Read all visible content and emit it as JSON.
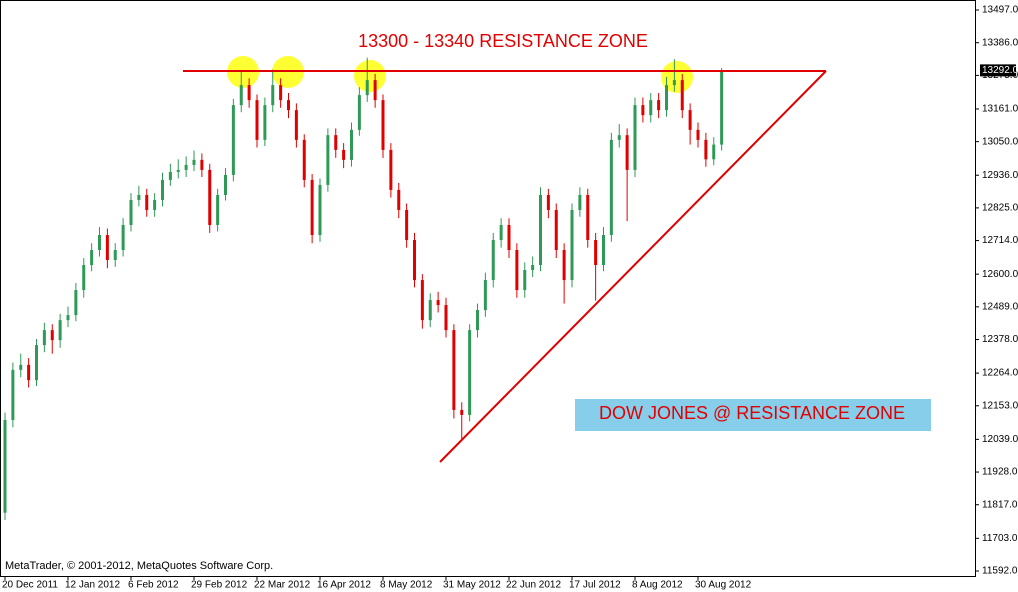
{
  "chart_data": {
    "type": "candlestick",
    "title": "13300 - 13340 RESISTANCE ZONE",
    "annotation": "DOW JONES @ RESISTANCE ZONE",
    "footer": "MetaTrader, © 2001-2012, MetaQuotes Software Corp.",
    "last_price": {
      "value": 13292,
      "label": "13292.0"
    },
    "bull_color": "#2f9a57",
    "bear_color": "#e00000",
    "categories": [
      "20 Dec 2011",
      null,
      null,
      null,
      null,
      null,
      null,
      null,
      "12 Jan 2012",
      null,
      null,
      null,
      null,
      null,
      null,
      null,
      "6 Feb 2012",
      null,
      null,
      null,
      null,
      null,
      null,
      null,
      "29 Feb 2012",
      null,
      null,
      null,
      null,
      null,
      null,
      null,
      "22 Mar 2012",
      null,
      null,
      null,
      null,
      null,
      null,
      null,
      "16 Apr 2012",
      null,
      null,
      null,
      null,
      null,
      null,
      null,
      "8 May 2012",
      null,
      null,
      null,
      null,
      null,
      null,
      null,
      "31 May 2012",
      null,
      null,
      null,
      null,
      null,
      null,
      null,
      "22 Jun 2012",
      null,
      null,
      null,
      null,
      null,
      null,
      null,
      "17 Jul 2012",
      null,
      null,
      null,
      null,
      null,
      null,
      null,
      "8 Aug 2012",
      null,
      null,
      null,
      null,
      null,
      null,
      null,
      "30 Aug 2012",
      null,
      null,
      null
    ],
    "open": [
      11790,
      12105,
      12275,
      12292,
      12240,
      12359,
      12410,
      12376,
      12444,
      12461,
      12546,
      12631,
      12682,
      12733,
      12648,
      12682,
      12767,
      12852,
      12869,
      12818,
      12852,
      12920,
      12947,
      12954,
      12971,
      12988,
      12954,
      12767,
      12869,
      12937,
      13174,
      13242,
      13191,
      13056,
      13174,
      13242,
      13191,
      13157,
      13056,
      12920,
      12733,
      12903,
      13072,
      13022,
      12988,
      13090,
      13208,
      13259,
      13191,
      13022,
      12886,
      12818,
      12716,
      12580,
      12444,
      12512,
      12495,
      12410,
      12139,
      12122,
      12410,
      12478,
      12580,
      12716,
      12767,
      12682,
      12546,
      12614,
      12631,
      12869,
      12818,
      12682,
      12580,
      12818,
      12869,
      12716,
      12631,
      12733,
      13056,
      13072,
      12954,
      13174,
      13140,
      13191,
      13157,
      13242,
      13259,
      13157,
      13090,
      13056,
      12990,
      13040
    ],
    "high": [
      12130,
      12300,
      12330,
      12315,
      12380,
      12435,
      12430,
      12465,
      12490,
      12570,
      12655,
      12705,
      12760,
      12755,
      12705,
      12790,
      12875,
      12900,
      12890,
      12875,
      12945,
      12975,
      12990,
      13000,
      13020,
      13010,
      12975,
      12890,
      12960,
      13195,
      13290,
      13265,
      13210,
      13200,
      13295,
      13265,
      13215,
      13180,
      13075,
      12940,
      12925,
      13095,
      13095,
      13045,
      13115,
      13235,
      13335,
      13280,
      13210,
      13045,
      12910,
      12840,
      12740,
      12600,
      12535,
      12540,
      12520,
      12430,
      12165,
      12430,
      12500,
      12605,
      12740,
      12790,
      12790,
      12705,
      12640,
      12660,
      12895,
      12890,
      12840,
      12705,
      12840,
      12895,
      12890,
      12740,
      12760,
      13080,
      13110,
      13095,
      13200,
      13200,
      13215,
      13215,
      13270,
      13330,
      13280,
      13180,
      13115,
      13080,
      13065,
      13300
    ],
    "low": [
      11765,
      12080,
      12250,
      12215,
      12220,
      12335,
      12330,
      12350,
      12420,
      12440,
      12520,
      12610,
      12660,
      12620,
      12625,
      12660,
      12745,
      12830,
      12795,
      12795,
      12830,
      12900,
      12925,
      12930,
      12950,
      12930,
      12740,
      12745,
      12850,
      12915,
      13150,
      13165,
      13030,
      13035,
      13150,
      13165,
      13130,
      13030,
      12895,
      12705,
      12710,
      12880,
      12995,
      12960,
      12965,
      13070,
      13185,
      13165,
      12995,
      12860,
      12790,
      12690,
      12555,
      12415,
      12420,
      12470,
      12385,
      12110,
      12035,
      12100,
      12385,
      12455,
      12555,
      12690,
      12655,
      12520,
      12520,
      12590,
      12610,
      12790,
      12655,
      12500,
      12555,
      12795,
      12690,
      12510,
      12610,
      12710,
      13030,
      12780,
      12930,
      13115,
      13115,
      13130,
      13135,
      13220,
      13130,
      13040,
      13030,
      12965,
      12970,
      13020
    ],
    "close": [
      12105,
      12275,
      12292,
      12240,
      12359,
      12410,
      12376,
      12444,
      12461,
      12546,
      12631,
      12682,
      12733,
      12648,
      12682,
      12767,
      12852,
      12869,
      12818,
      12852,
      12920,
      12947,
      12954,
      12971,
      12988,
      12954,
      12767,
      12869,
      12937,
      13174,
      13242,
      13191,
      13056,
      13174,
      13242,
      13191,
      13157,
      13056,
      12920,
      12733,
      12903,
      13072,
      13022,
      12988,
      13090,
      13208,
      13259,
      13191,
      13022,
      12886,
      12818,
      12716,
      12580,
      12444,
      12512,
      12495,
      12410,
      12139,
      12122,
      12410,
      12478,
      12580,
      12716,
      12767,
      12682,
      12546,
      12614,
      12631,
      12869,
      12818,
      12682,
      12580,
      12818,
      12869,
      12716,
      12631,
      12733,
      13056,
      13072,
      12954,
      13174,
      13140,
      13191,
      13157,
      13242,
      13259,
      13157,
      13090,
      13056,
      12990,
      13040,
      13292
    ],
    "ylim": [
      11575,
      13531
    ],
    "yticks": [
      {
        "value": 13497,
        "label": "13497.0"
      },
      {
        "value": 13386,
        "label": "13386.0"
      },
      {
        "value": 13275,
        "label": "13275.0"
      },
      {
        "value": 13161,
        "label": "13161.0"
      },
      {
        "value": 13050,
        "label": "13050.0"
      },
      {
        "value": 12936,
        "label": "12936.0"
      },
      {
        "value": 12825,
        "label": "12825.0"
      },
      {
        "value": 12714,
        "label": "12714.0"
      },
      {
        "value": 12600,
        "label": "12600.0"
      },
      {
        "value": 12489,
        "label": "12489.0"
      },
      {
        "value": 12378,
        "label": "12378.0"
      },
      {
        "value": 12264,
        "label": "12264.0"
      },
      {
        "value": 12153,
        "label": "12153.0"
      },
      {
        "value": 12039,
        "label": "12039.0"
      },
      {
        "value": 11928,
        "label": "11928.0"
      },
      {
        "value": 11817,
        "label": "11817.0"
      },
      {
        "value": 11703,
        "label": "11703.0"
      },
      {
        "value": 11592,
        "label": "11592.0"
      }
    ]
  }
}
